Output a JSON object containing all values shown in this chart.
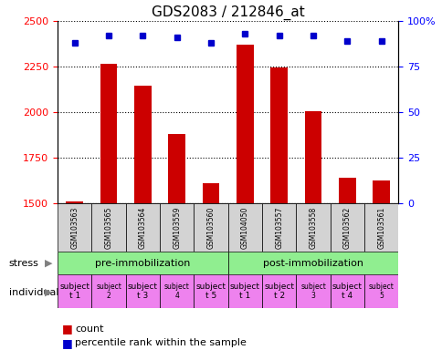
{
  "title": "GDS2083 / 212846_at",
  "samples": [
    "GSM103563",
    "GSM103565",
    "GSM103564",
    "GSM103559",
    "GSM103560",
    "GSM104050",
    "GSM103557",
    "GSM103558",
    "GSM103562",
    "GSM103561"
  ],
  "counts": [
    1510,
    2265,
    2145,
    1880,
    1610,
    2370,
    2245,
    2005,
    1640,
    1625
  ],
  "percentile_ranks": [
    88,
    92,
    92,
    91,
    88,
    93,
    92,
    92,
    89,
    89
  ],
  "ylim_left": [
    1500,
    2500
  ],
  "ylim_right": [
    0,
    100
  ],
  "yticks_left": [
    1500,
    1750,
    2000,
    2250,
    2500
  ],
  "yticks_right": [
    0,
    25,
    50,
    75,
    100
  ],
  "bar_color": "#cc0000",
  "dot_color": "#0000cc",
  "stress_groups": [
    {
      "label": "pre-immobilization",
      "start": 0,
      "end": 5,
      "color": "#90ee90"
    },
    {
      "label": "post-immobilization",
      "start": 5,
      "end": 10,
      "color": "#90ee90"
    }
  ],
  "individual_labels": [
    "subject\nt 1",
    "subject\n2",
    "subject\nt 3",
    "subject\n4",
    "subject\nt 5",
    "subject\nt 1",
    "subject\nt 2",
    "subject\n3",
    "subject\nt 4",
    "subject\n5"
  ],
  "individual_colors": [
    "#ee82ee",
    "#ee82ee",
    "#ee82ee",
    "#ee82ee",
    "#ee82ee",
    "#ee82ee",
    "#ee82ee",
    "#ee82ee",
    "#ee82ee",
    "#ee82ee"
  ],
  "individual_bold": [
    true,
    false,
    true,
    false,
    true,
    true,
    true,
    false,
    true,
    false
  ],
  "stress_label": "stress",
  "individual_label": "individual",
  "legend_count": "count",
  "legend_percentile": "percentile rank within the sample",
  "bg_color": "#ffffff",
  "grid_color": "#000000",
  "label_area_color": "#cccccc"
}
